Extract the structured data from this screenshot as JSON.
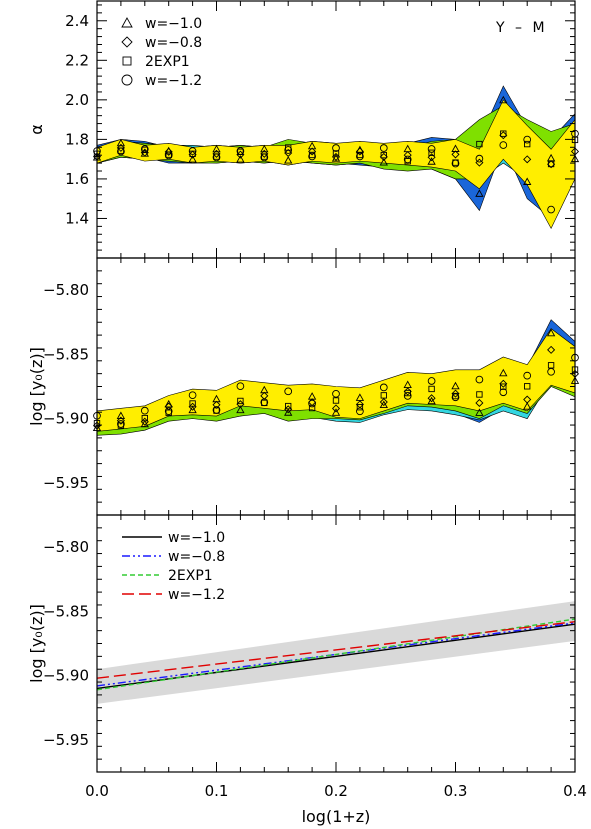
{
  "chart_data": [
    {
      "type": "area",
      "panel": "top",
      "ylabel": "α",
      "annotation": "Y – M",
      "xlim": [
        0.0,
        0.4
      ],
      "ylim": [
        1.2,
        2.5
      ],
      "yticks": [
        "1.4",
        "1.6",
        "1.8",
        "2.0",
        "2.2",
        "2.4"
      ],
      "yticks_values": [
        1.4,
        1.6,
        1.8,
        2.0,
        2.2,
        2.4
      ],
      "legend": [
        {
          "marker": "triangle",
          "label": "w=−1.0"
        },
        {
          "marker": "diamond",
          "label": "w=−0.8"
        },
        {
          "marker": "square",
          "label": "2EXP1"
        },
        {
          "marker": "circle",
          "label": "w=−1.2"
        }
      ],
      "x": [
        0.0,
        0.02,
        0.04,
        0.06,
        0.08,
        0.1,
        0.12,
        0.14,
        0.16,
        0.18,
        0.2,
        0.22,
        0.24,
        0.26,
        0.28,
        0.3,
        0.32,
        0.34,
        0.36,
        0.38,
        0.4
      ],
      "series": [
        {
          "color": "#1a66d9",
          "center": [
            1.73,
            1.76,
            1.75,
            1.72,
            1.72,
            1.73,
            1.72,
            1.73,
            1.72,
            1.74,
            1.73,
            1.72,
            1.71,
            1.72,
            1.73,
            1.7,
            1.62,
            1.92,
            1.68,
            1.6,
            1.78
          ],
          "width": [
            0.04,
            0.04,
            0.04,
            0.04,
            0.04,
            0.04,
            0.04,
            0.04,
            0.05,
            0.05,
            0.05,
            0.05,
            0.05,
            0.06,
            0.08,
            0.1,
            0.18,
            0.15,
            0.18,
            0.2,
            0.15
          ]
        },
        {
          "color": "#33d6e0",
          "center": [
            1.72,
            1.75,
            1.74,
            1.73,
            1.73,
            1.72,
            1.73,
            1.72,
            1.74,
            1.73,
            1.72,
            1.73,
            1.72,
            1.71,
            1.72,
            1.71,
            1.7,
            1.8,
            1.72,
            1.65,
            1.76
          ],
          "width": [
            0.04,
            0.04,
            0.04,
            0.04,
            0.04,
            0.04,
            0.04,
            0.04,
            0.05,
            0.05,
            0.05,
            0.05,
            0.05,
            0.06,
            0.06,
            0.08,
            0.1,
            0.12,
            0.12,
            0.14,
            0.12
          ]
        },
        {
          "color": "#7fe000",
          "center": [
            1.72,
            1.75,
            1.74,
            1.73,
            1.72,
            1.72,
            1.73,
            1.72,
            1.75,
            1.73,
            1.72,
            1.73,
            1.71,
            1.7,
            1.72,
            1.7,
            1.75,
            1.85,
            1.75,
            1.7,
            1.78
          ],
          "width": [
            0.04,
            0.04,
            0.04,
            0.04,
            0.04,
            0.04,
            0.04,
            0.04,
            0.05,
            0.05,
            0.05,
            0.05,
            0.06,
            0.06,
            0.07,
            0.1,
            0.15,
            0.12,
            0.15,
            0.14,
            0.1
          ]
        },
        {
          "color": "#ffee00",
          "center": [
            1.72,
            1.76,
            1.73,
            1.74,
            1.72,
            1.73,
            1.72,
            1.73,
            1.72,
            1.74,
            1.73,
            1.74,
            1.73,
            1.73,
            1.72,
            1.72,
            1.65,
            1.85,
            1.72,
            1.55,
            1.75
          ],
          "width": [
            0.04,
            0.04,
            0.04,
            0.04,
            0.04,
            0.04,
            0.04,
            0.04,
            0.05,
            0.05,
            0.05,
            0.05,
            0.05,
            0.06,
            0.06,
            0.08,
            0.1,
            0.15,
            0.15,
            0.2,
            0.15
          ]
        }
      ]
    },
    {
      "type": "area",
      "panel": "middle",
      "ylabel": "log [y₀(z)]",
      "xlim": [
        0.0,
        0.4
      ],
      "ylim": [
        -5.975,
        -5.775
      ],
      "yticks": [
        "−5.95",
        "−5.90",
        "−5.85",
        "−5.80"
      ],
      "yticks_values": [
        -5.95,
        -5.9,
        -5.85,
        -5.8
      ],
      "x": [
        0.0,
        0.02,
        0.04,
        0.06,
        0.08,
        0.1,
        0.12,
        0.14,
        0.16,
        0.18,
        0.2,
        0.22,
        0.24,
        0.26,
        0.28,
        0.3,
        0.32,
        0.34,
        0.36,
        0.38,
        0.4
      ],
      "series": [
        {
          "color": "#1a66d9",
          "center": [
            -5.903,
            -5.902,
            -5.9,
            -5.893,
            -5.888,
            -5.89,
            -5.888,
            -5.883,
            -5.89,
            -5.888,
            -5.889,
            -5.89,
            -5.883,
            -5.88,
            -5.88,
            -5.882,
            -5.887,
            -5.874,
            -5.88,
            -5.845,
            -5.86
          ],
          "width": [
            0.008,
            0.008,
            0.008,
            0.008,
            0.01,
            0.01,
            0.01,
            0.01,
            0.01,
            0.01,
            0.012,
            0.012,
            0.012,
            0.012,
            0.012,
            0.014,
            0.016,
            0.018,
            0.02,
            0.022,
            0.02
          ]
        },
        {
          "color": "#33d6e0",
          "center": [
            -5.904,
            -5.903,
            -5.901,
            -5.892,
            -5.889,
            -5.891,
            -5.887,
            -5.884,
            -5.891,
            -5.889,
            -5.89,
            -5.891,
            -5.885,
            -5.881,
            -5.882,
            -5.883,
            -5.885,
            -5.876,
            -5.882,
            -5.85,
            -5.862
          ],
          "width": [
            0.008,
            0.008,
            0.008,
            0.008,
            0.01,
            0.01,
            0.01,
            0.01,
            0.01,
            0.01,
            0.012,
            0.012,
            0.012,
            0.012,
            0.012,
            0.014,
            0.016,
            0.018,
            0.018,
            0.02,
            0.018
          ]
        },
        {
          "color": "#7fe000",
          "center": [
            -5.905,
            -5.904,
            -5.901,
            -5.894,
            -5.89,
            -5.892,
            -5.888,
            -5.886,
            -5.892,
            -5.89,
            -5.888,
            -5.889,
            -5.884,
            -5.878,
            -5.879,
            -5.88,
            -5.884,
            -5.872,
            -5.878,
            -5.855,
            -5.865
          ],
          "width": [
            0.008,
            0.008,
            0.008,
            0.008,
            0.01,
            0.01,
            0.01,
            0.01,
            0.01,
            0.01,
            0.012,
            0.012,
            0.012,
            0.012,
            0.012,
            0.014,
            0.016,
            0.018,
            0.018,
            0.02,
            0.018
          ]
        },
        {
          "color": "#ffee00",
          "center": [
            -5.902,
            -5.9,
            -5.898,
            -5.89,
            -5.887,
            -5.888,
            -5.88,
            -5.882,
            -5.884,
            -5.883,
            -5.887,
            -5.888,
            -5.882,
            -5.876,
            -5.877,
            -5.876,
            -5.878,
            -5.87,
            -5.876,
            -5.852,
            -5.862
          ],
          "width": [
            0.008,
            0.008,
            0.008,
            0.008,
            0.01,
            0.01,
            0.01,
            0.01,
            0.01,
            0.01,
            0.012,
            0.012,
            0.012,
            0.012,
            0.012,
            0.014,
            0.016,
            0.018,
            0.018,
            0.022,
            0.018
          ]
        }
      ]
    },
    {
      "type": "line",
      "panel": "bottom",
      "xlabel": "log(1+z)",
      "ylabel": "log [y₀(z)]",
      "xlim": [
        0.0,
        0.4
      ],
      "ylim": [
        -5.975,
        -5.775
      ],
      "xticks": [
        "0.0",
        "0.1",
        "0.2",
        "0.3",
        "0.4"
      ],
      "xticks_values": [
        0.0,
        0.1,
        0.2,
        0.3,
        0.4
      ],
      "yticks": [
        "−5.95",
        "−5.90",
        "−5.85",
        "−5.80"
      ],
      "yticks_values": [
        -5.95,
        -5.9,
        -5.85,
        -5.8
      ],
      "band": {
        "color": "#d9d9d9",
        "x": [
          0.0,
          0.4
        ],
        "upper": [
          -5.895,
          -5.842
        ],
        "lower": [
          -5.922,
          -5.873
        ]
      },
      "series": [
        {
          "name": "w=−1.0",
          "color": "#000000",
          "dash": "solid",
          "x": [
            0.0,
            0.4
          ],
          "y": [
            -5.91,
            -5.86
          ]
        },
        {
          "name": "w=−0.8",
          "color": "#1a1aff",
          "dash": "dashdotdot",
          "x": [
            0.0,
            0.4
          ],
          "y": [
            -5.908,
            -5.859
          ]
        },
        {
          "name": "2EXP1",
          "color": "#33cc33",
          "dash": "dashed",
          "x": [
            0.0,
            0.4
          ],
          "y": [
            -5.911,
            -5.856
          ]
        },
        {
          "name": "w=−1.2",
          "color": "#e00000",
          "dash": "longdash",
          "x": [
            0.0,
            0.4
          ],
          "y": [
            -5.902,
            -5.858
          ]
        }
      ]
    }
  ]
}
